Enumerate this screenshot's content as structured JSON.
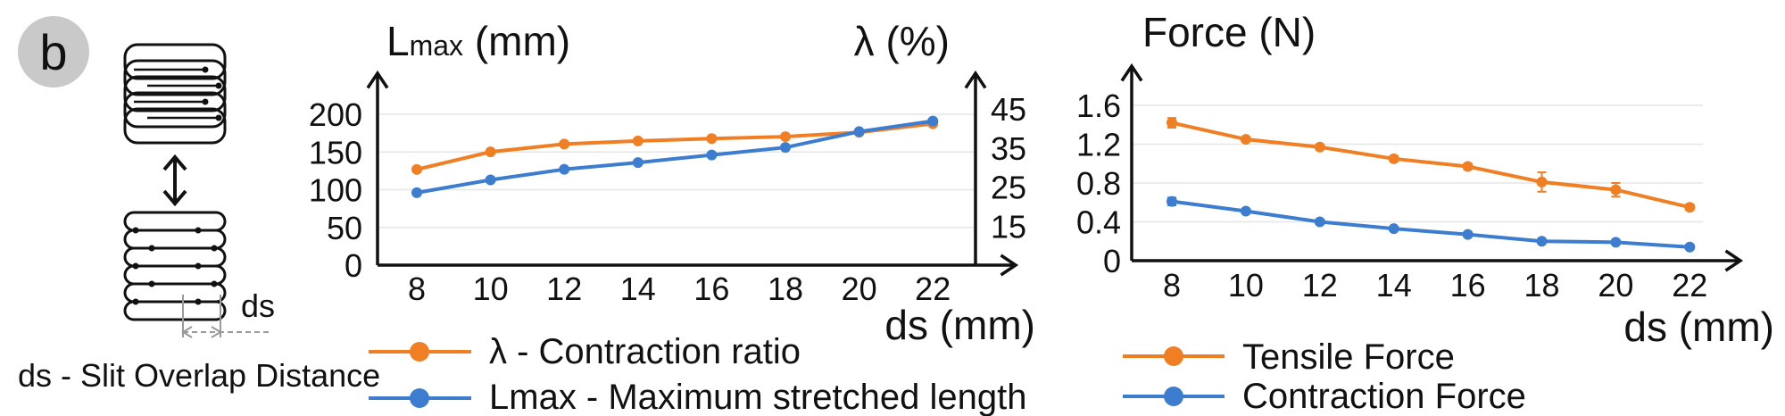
{
  "panel_label": "b",
  "schematic": {
    "ds_label": "ds",
    "caption": "ds - Slit Overlap Distance",
    "arrow_glyph": "double-arrow-icon"
  },
  "colors": {
    "orange": "#F07F24",
    "blue": "#3C7DD0",
    "axis": "#111111",
    "grid": "#e6e6e6"
  },
  "chart_data": [
    {
      "type": "line",
      "xlabel": "ds (mm)",
      "ylabel_left": "Lmax (mm)",
      "ylabel_left_main": "L",
      "ylabel_left_sub": "max",
      "ylabel_left_unit": " (mm)",
      "ylabel_right": "λ (%)",
      "x": [
        8,
        10,
        12,
        14,
        16,
        18,
        20,
        22
      ],
      "x_ticks": [
        "8",
        "10",
        "12",
        "14",
        "16",
        "18",
        "20",
        "22"
      ],
      "ylim_left": [
        0,
        200
      ],
      "yticks_left": [
        "0",
        "50",
        "100",
        "150",
        "200"
      ],
      "ylim_right": [
        5,
        45
      ],
      "yticks_right": [
        "15",
        "25",
        "35",
        "45"
      ],
      "series": [
        {
          "name": "λ - Contraction ratio",
          "axis": "right",
          "color": "#F07F24",
          "values": [
            29.5,
            34,
            36,
            36.8,
            37.4,
            37.9,
            39,
            41.2
          ],
          "error": [
            1.2,
            0.6,
            0.5,
            0.5,
            0.4,
            0.4,
            0.4,
            0.4
          ]
        },
        {
          "name": "Lmax - Maximum stretched length",
          "axis": "left",
          "color": "#3C7DD0",
          "values": [
            96,
            113,
            127,
            136,
            146,
            156,
            177,
            191
          ]
        }
      ]
    },
    {
      "type": "line",
      "xlabel": "ds (mm)",
      "ylabel": "Force (N)",
      "x": [
        8,
        10,
        12,
        14,
        16,
        18,
        20,
        22
      ],
      "x_ticks": [
        "8",
        "10",
        "12",
        "14",
        "16",
        "18",
        "20",
        "22"
      ],
      "ylim": [
        0,
        1.6
      ],
      "yticks": [
        "0",
        "0.4",
        "0.8",
        "1.2",
        "1.6"
      ],
      "series": [
        {
          "name": "Tensile Force",
          "color": "#F07F24",
          "values": [
            1.42,
            1.25,
            1.17,
            1.05,
            0.97,
            0.81,
            0.73,
            0.55
          ],
          "error": [
            0.05,
            0.02,
            0.02,
            0.03,
            0.03,
            0.1,
            0.07,
            0.03
          ]
        },
        {
          "name": "Contraction Force",
          "color": "#3C7DD0",
          "values": [
            0.61,
            0.51,
            0.4,
            0.33,
            0.27,
            0.2,
            0.19,
            0.14
          ],
          "error": [
            0.04,
            0.02,
            0.02,
            0.02,
            0.02,
            0.02,
            0.02,
            0.02
          ]
        }
      ]
    }
  ]
}
